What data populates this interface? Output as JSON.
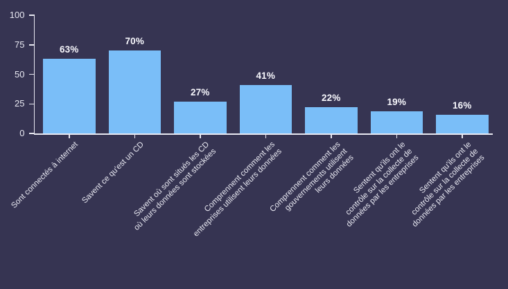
{
  "chart_data": {
    "type": "bar",
    "title": "",
    "xlabel": "",
    "ylabel": "",
    "ylim": [
      0,
      100
    ],
    "y_ticks": [
      0,
      25,
      50,
      75,
      100
    ],
    "grid": false,
    "legend": null,
    "categories": [
      "Sont connectés à internet",
      "Savent ce qu'est un CD",
      "Savent où sont situés les CD où leurs données sont stockées",
      "Comprennent comment les entreprises utilisent leurs données",
      "Comprennent comment les gouvernements utilisent leurs données",
      "Sentent qu'ils ont le contrôle sur la collecte de données par les entreprises",
      "Sentent qu'ils ont le contrôle sur la collecte de données par les entreprises"
    ],
    "category_lines": [
      [
        "Sont connectés à internet"
      ],
      [
        "Savent ce qu'est un CD"
      ],
      [
        "Savent où sont situés les CD",
        "où leurs données sont stockées"
      ],
      [
        "Comprennent comment les",
        "entreprises utilisent leurs données"
      ],
      [
        "Comprennent comment les",
        "gouvernements  utilisent",
        "leurs données"
      ],
      [
        "Sentent qu'ils ont le",
        "contrôle sur la collecte de",
        "données par les entreprises"
      ],
      [
        "Sentent qu'ils ont le",
        "contrôle sur la collecte de",
        "données par les entreprises"
      ]
    ],
    "values": [
      63,
      70,
      27,
      41,
      22,
      19,
      16
    ],
    "value_labels": [
      "63%",
      "70%",
      "27%",
      "41%",
      "22%",
      "19%",
      "16%"
    ],
    "colors": {
      "background": "#363452",
      "bar": "#7abef8",
      "axis": "#e9e9f2",
      "tick_label": "#e9e9f2",
      "value_label": "#f7f7fc",
      "category_label": "#e9e9f2"
    }
  }
}
